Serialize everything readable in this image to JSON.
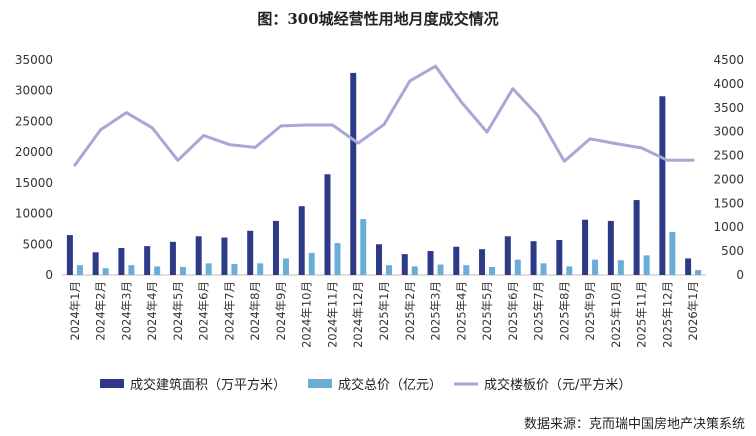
{
  "chart_data": {
    "type": "bar+line",
    "title": "图：300城经营性用地月度成交情况",
    "categories": [
      "2024年1月",
      "2024年2月",
      "2024年3月",
      "2024年4月",
      "2024年5月",
      "2024年6月",
      "2024年7月",
      "2024年8月",
      "2024年9月",
      "2024年10月",
      "2024年11月",
      "2024年12月",
      "2025年1月",
      "2025年2月",
      "2025年3月",
      "2025年4月",
      "2025年5月",
      "2025年6月",
      "2025年7月",
      "2025年8月",
      "2025年9月",
      "2025年10月",
      "2025年11月",
      "2025年12月",
      "2026年1月"
    ],
    "left_axis": {
      "ylim": [
        0,
        35000
      ],
      "ticks": [
        "0",
        "5000",
        "10000",
        "15000",
        "20000",
        "25000",
        "30000",
        "35000"
      ]
    },
    "right_axis": {
      "ylim": [
        0,
        4500
      ],
      "ticks": [
        "0",
        "500",
        "1000",
        "1500",
        "2000",
        "2500",
        "3000",
        "3500",
        "4000",
        "4500"
      ]
    },
    "series": [
      {
        "name": "成交建筑面积（万平方米）",
        "type": "bar",
        "axis": "left",
        "color": "#2e3a87",
        "values": [
          6500,
          3700,
          4400,
          4700,
          5400,
          6300,
          6100,
          7200,
          8800,
          11200,
          16400,
          32900,
          5000,
          3400,
          3900,
          4600,
          4200,
          6300,
          5500,
          5700,
          9000,
          8800,
          12200,
          29100,
          2700
        ]
      },
      {
        "name": "成交总价（亿元）",
        "type": "bar",
        "axis": "left",
        "color": "#6aaed6",
        "values": [
          1600,
          1100,
          1600,
          1400,
          1300,
          1900,
          1800,
          1900,
          2700,
          3600,
          5200,
          9100,
          1600,
          1400,
          1700,
          1600,
          1300,
          2500,
          1900,
          1400,
          2500,
          2400,
          3200,
          7000,
          800
        ]
      },
      {
        "name": "成交楼板价（元/平方米）",
        "type": "line",
        "axis": "right",
        "color": "#a6a8d8",
        "values": [
          2300,
          3040,
          3400,
          3080,
          2400,
          2920,
          2730,
          2670,
          3120,
          3140,
          3140,
          2760,
          3150,
          4060,
          4370,
          3620,
          2990,
          3900,
          3320,
          2380,
          2850,
          2750,
          2660,
          2400,
          2400
        ]
      }
    ],
    "legend": {
      "position": "bottom"
    },
    "source": "数据来源：克而瑞中国房地产决策系统"
  }
}
